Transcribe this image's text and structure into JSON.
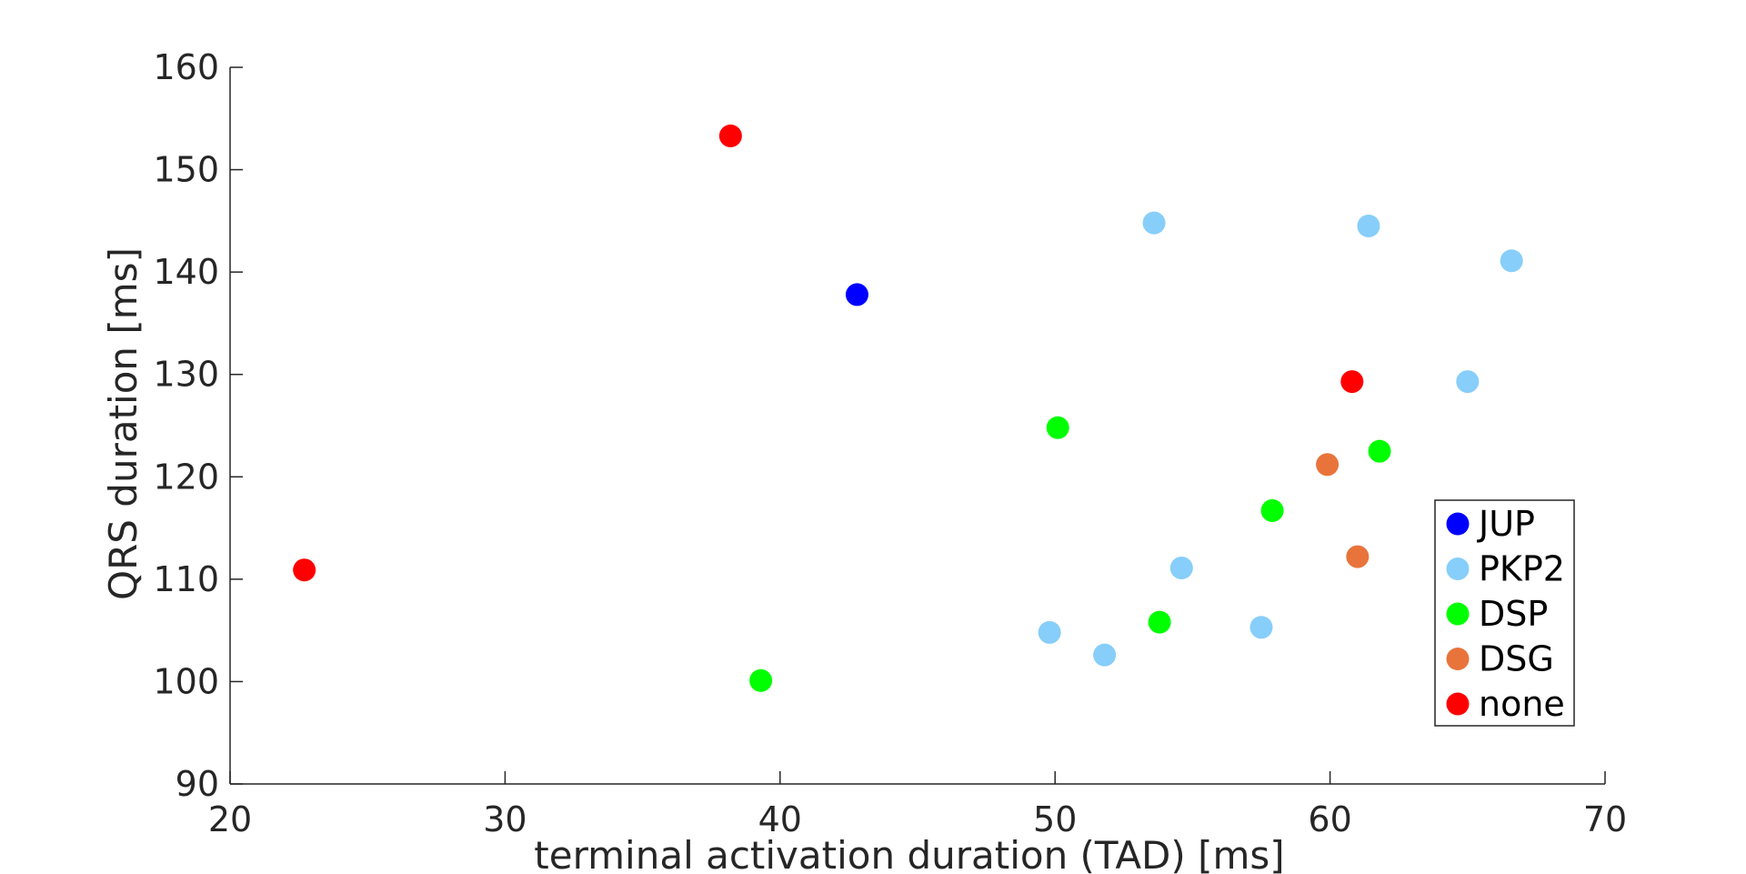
{
  "chart_data": {
    "type": "scatter",
    "title": "",
    "xlabel": "terminal activation duration (TAD) [ms]",
    "ylabel": "QRS duration [ms]",
    "xlim": [
      20,
      70
    ],
    "ylim": [
      90,
      160
    ],
    "xticks": [
      20,
      30,
      40,
      50,
      60,
      70
    ],
    "yticks": [
      90,
      100,
      110,
      120,
      130,
      140,
      150,
      160
    ],
    "grid": false,
    "legend_position": "right",
    "series": [
      {
        "name": "JUP",
        "color": "#0000ff",
        "points": [
          {
            "x": 42.8,
            "y": 137.8
          }
        ]
      },
      {
        "name": "PKP2",
        "color": "#87cefa",
        "points": [
          {
            "x": 53.6,
            "y": 144.8
          },
          {
            "x": 61.4,
            "y": 144.5
          },
          {
            "x": 66.6,
            "y": 141.1
          },
          {
            "x": 65.0,
            "y": 129.3
          },
          {
            "x": 54.6,
            "y": 111.1
          },
          {
            "x": 57.5,
            "y": 105.3
          },
          {
            "x": 49.8,
            "y": 104.8
          },
          {
            "x": 51.8,
            "y": 102.6
          }
        ]
      },
      {
        "name": "DSP",
        "color": "#00ff00",
        "points": [
          {
            "x": 50.1,
            "y": 124.8
          },
          {
            "x": 61.8,
            "y": 122.5
          },
          {
            "x": 57.9,
            "y": 116.7
          },
          {
            "x": 53.8,
            "y": 105.8
          },
          {
            "x": 39.3,
            "y": 100.1
          }
        ]
      },
      {
        "name": "DSG",
        "color": "#e8743b",
        "points": [
          {
            "x": 59.9,
            "y": 121.2
          },
          {
            "x": 61.0,
            "y": 112.2
          }
        ]
      },
      {
        "name": "none",
        "color": "#ff0000",
        "points": [
          {
            "x": 38.2,
            "y": 153.3
          },
          {
            "x": 60.8,
            "y": 129.3
          },
          {
            "x": 22.7,
            "y": 110.9
          }
        ]
      }
    ]
  }
}
